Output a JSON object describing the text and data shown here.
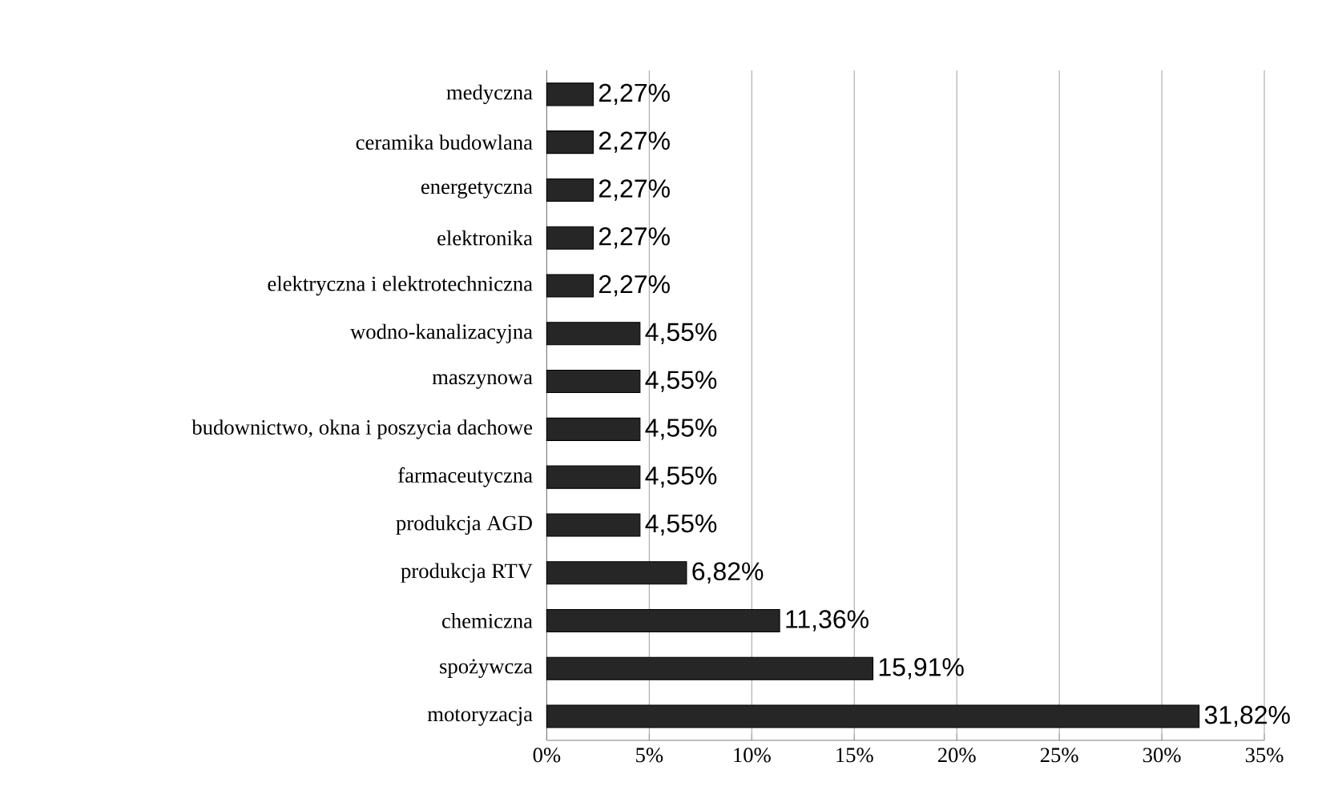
{
  "chart_data": {
    "type": "bar",
    "orientation": "horizontal",
    "categories": [
      "medyczna",
      "ceramika budowlana",
      "energetyczna",
      "elektronika",
      "elektryczna i elektrotechniczna",
      "wodno-kanalizacyjna",
      "maszynowa",
      "budownictwo, okna i poszycia dachowe",
      "farmaceutyczna",
      "produkcja AGD",
      "produkcja RTV",
      "chemiczna",
      "spożywcza",
      "motoryzacja"
    ],
    "values": [
      2.27,
      2.27,
      2.27,
      2.27,
      2.27,
      4.55,
      4.55,
      4.55,
      4.55,
      4.55,
      6.82,
      11.36,
      15.91,
      31.82
    ],
    "value_labels": [
      "2,27%",
      "2,27%",
      "2,27%",
      "2,27%",
      "2,27%",
      "4,55%",
      "4,55%",
      "4,55%",
      "4,55%",
      "4,55%",
      "6,82%",
      "11,36%",
      "15,91%",
      "31,82%"
    ],
    "color": "#262626",
    "xlim": [
      0,
      35
    ],
    "xticks": [
      {
        "value": 0,
        "label": "0%"
      },
      {
        "value": 5,
        "label": "5%"
      },
      {
        "value": 10,
        "label": "10%"
      },
      {
        "value": 15,
        "label": "15%"
      },
      {
        "value": 20,
        "label": "20%"
      },
      {
        "value": 25,
        "label": "25%"
      },
      {
        "value": 30,
        "label": "30%"
      },
      {
        "value": 35,
        "label": "35%"
      }
    ],
    "grid": "x"
  }
}
